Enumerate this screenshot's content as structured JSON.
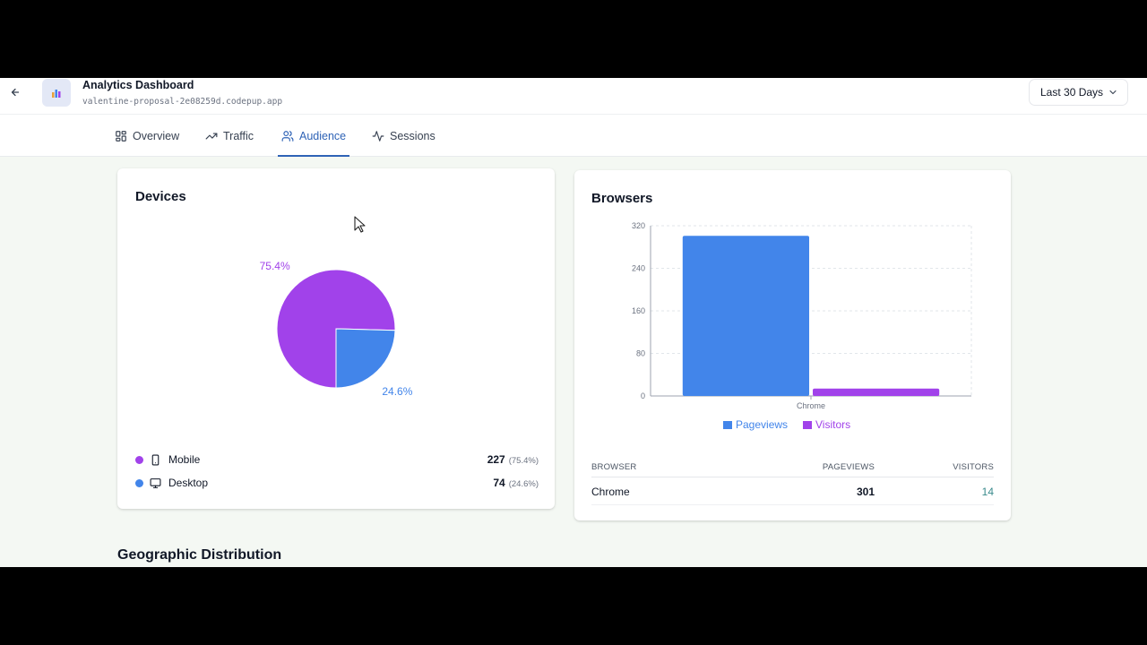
{
  "header": {
    "title": "Analytics Dashboard",
    "url": "valentine-proposal-2e08259d.codepup.app",
    "date_range": "Last 30 Days",
    "icons": {
      "back": "arrow-left-icon",
      "app": "bar-chart-icon",
      "dropdown": "chevron-down-icon"
    }
  },
  "tabs": [
    {
      "label": "Overview",
      "icon": "grid-icon",
      "active": false
    },
    {
      "label": "Traffic",
      "icon": "trending-up-icon",
      "active": false
    },
    {
      "label": "Audience",
      "icon": "users-icon",
      "active": true
    },
    {
      "label": "Sessions",
      "icon": "activity-icon",
      "active": false
    }
  ],
  "devices": {
    "title": "Devices",
    "items": [
      {
        "label": "Mobile",
        "icon": "smartphone-icon",
        "count": "227",
        "percent": "(75.4%)",
        "slice_label": "75.4%",
        "color": "#a142ea",
        "share": 75.4
      },
      {
        "label": "Desktop",
        "icon": "monitor-icon",
        "count": "74",
        "percent": "(24.6%)",
        "slice_label": "24.6%",
        "color": "#4285ea",
        "share": 24.6
      }
    ]
  },
  "browsers": {
    "title": "Browsers",
    "legend": [
      {
        "label": "Pageviews",
        "color": "#4285ea"
      },
      {
        "label": "Visitors",
        "color": "#a142ea"
      }
    ],
    "table": {
      "headers": [
        "BROWSER",
        "PAGEVIEWS",
        "VISITORS"
      ],
      "rows": [
        {
          "browser": "Chrome",
          "pageviews": "301",
          "visitors": "14"
        }
      ]
    }
  },
  "chart_data": [
    {
      "type": "pie",
      "title": "Devices",
      "categories": [
        "Mobile",
        "Desktop"
      ],
      "values": [
        227,
        74
      ],
      "labels": [
        "75.4%",
        "24.6%"
      ],
      "colors": [
        "#a142ea",
        "#4285ea"
      ]
    },
    {
      "type": "bar",
      "title": "Browsers",
      "categories": [
        "Chrome"
      ],
      "series": [
        {
          "name": "Pageviews",
          "values": [
            301
          ],
          "color": "#4285ea"
        },
        {
          "name": "Visitors",
          "values": [
            14
          ],
          "color": "#a142ea"
        }
      ],
      "yticks": [
        "0",
        "80",
        "160",
        "240",
        "320"
      ],
      "ylim": [
        0,
        320
      ],
      "grid": true,
      "legend": "bottom"
    }
  ],
  "geo": {
    "title": "Geographic Distribution"
  }
}
